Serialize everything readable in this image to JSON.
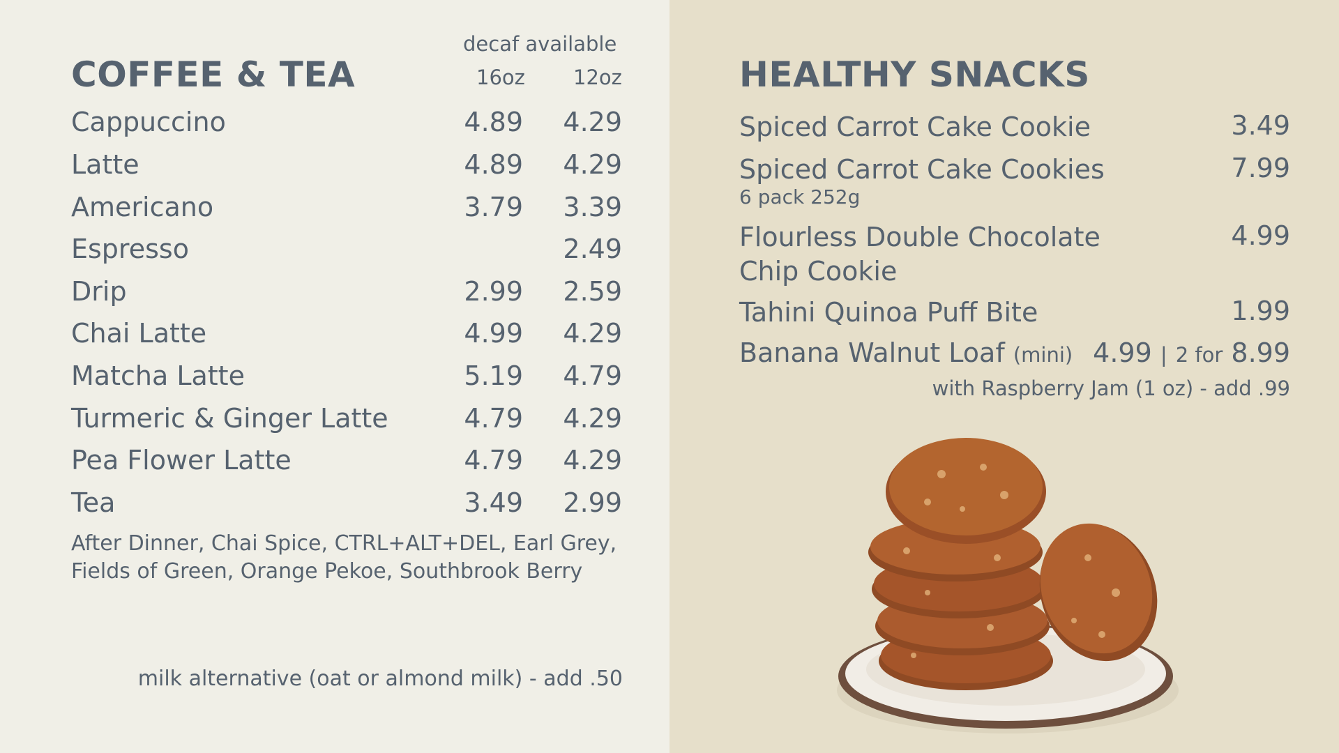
{
  "coffee": {
    "title": "COFFEE & TEA",
    "decaf_note": "decaf available",
    "size_large": "16oz",
    "size_small": "12oz",
    "items": [
      {
        "name": "Cappuccino",
        "p16": "4.89",
        "p12": "4.29"
      },
      {
        "name": "Latte",
        "p16": "4.89",
        "p12": "4.29"
      },
      {
        "name": "Americano",
        "p16": "3.79",
        "p12": "3.39"
      },
      {
        "name": "Espresso",
        "p16": "",
        "p12": "2.49"
      },
      {
        "name": "Drip",
        "p16": "2.99",
        "p12": "2.59"
      },
      {
        "name": "Chai Latte",
        "p16": "4.99",
        "p12": "4.29"
      },
      {
        "name": "Matcha Latte",
        "p16": "5.19",
        "p12": "4.79"
      },
      {
        "name": "Turmeric & Ginger Latte",
        "p16": "4.79",
        "p12": "4.29"
      },
      {
        "name": "Pea Flower Latte",
        "p16": "4.79",
        "p12": "4.29"
      },
      {
        "name": "Tea",
        "p16": "3.49",
        "p12": "2.99"
      }
    ],
    "tea_flavors": "After Dinner, Chai Spice, CTRL+ALT+DEL, Earl Grey, Fields of Green, Orange Pekoe, Southbrook Berry",
    "milk_note": "milk alternative (oat or almond milk) - add .50"
  },
  "snacks": {
    "title": "HEALTHY SNACKS",
    "items": [
      {
        "name": "Spiced Carrot Cake Cookie",
        "price": "3.49",
        "sub": ""
      },
      {
        "name": "Spiced Carrot Cake Cookies",
        "price": "7.99",
        "sub": "6 pack 252g"
      },
      {
        "name": "Flourless Double Chocolate Chip Cookie",
        "price": "4.99",
        "sub": ""
      },
      {
        "name": "Tahini Quinoa Puff Bite",
        "price": "1.99",
        "sub": ""
      }
    ],
    "banana": {
      "name": "Banana Walnut Loaf",
      "qualifier": "(mini)",
      "price": "4.99",
      "separator": "|",
      "multi_prefix": "2 for",
      "multi_price": "8.99",
      "addon": "with Raspberry Jam (1 oz) - add .99"
    }
  },
  "colors": {
    "left_bg": "#f0efe7",
    "right_bg": "#e6dfca",
    "text": "#56626f",
    "cookie": "#a5552a",
    "plate": "#f1ede6",
    "plate_rim": "#6e4f3e"
  },
  "image": {
    "icon": "cookie-stack-photo"
  }
}
